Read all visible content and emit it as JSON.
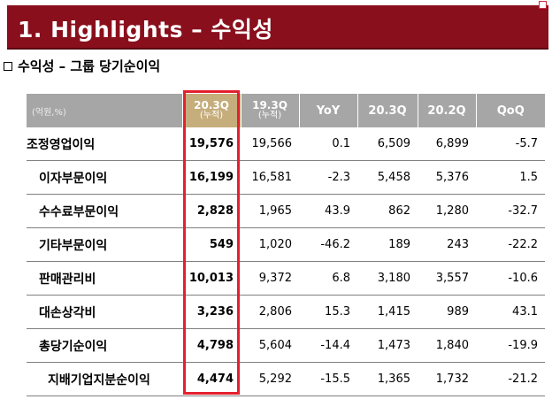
{
  "slide": {
    "title": "1. Highlights – 수익성",
    "subtitle": "수익성 – 그룹 당기순이익"
  },
  "table": {
    "unit": "(억원,%)",
    "columns": [
      {
        "label": "20.3Q",
        "sub": "(누적)"
      },
      {
        "label": "19.3Q",
        "sub": "(누적)"
      },
      {
        "label": "YoY",
        "sub": ""
      },
      {
        "label": "20.3Q",
        "sub": ""
      },
      {
        "label": "20.2Q",
        "sub": ""
      },
      {
        "label": "QoQ",
        "sub": ""
      }
    ],
    "rows": [
      {
        "label": "조정영업이익",
        "values": [
          "19,576",
          "19,566",
          "0.1",
          "6,509",
          "6,899",
          "-5.7"
        ]
      },
      {
        "label": "이자부문이익",
        "values": [
          "16,199",
          "16,581",
          "-2.3",
          "5,458",
          "5,376",
          "1.5"
        ]
      },
      {
        "label": "수수료부문이익",
        "values": [
          "2,828",
          "1,965",
          "43.9",
          "862",
          "1,280",
          "-32.7"
        ]
      },
      {
        "label": "기타부문이익",
        "values": [
          "549",
          "1,020",
          "-46.2",
          "189",
          "243",
          "-22.2"
        ]
      },
      {
        "label": "판매관리비",
        "values": [
          "10,013",
          "9,372",
          "6.8",
          "3,180",
          "3,557",
          "-10.6"
        ]
      },
      {
        "label": "대손상각비",
        "values": [
          "3,236",
          "2,806",
          "15.3",
          "1,415",
          "989",
          "43.1"
        ]
      },
      {
        "label": "총당기순이익",
        "values": [
          "4,798",
          "5,604",
          "-14.4",
          "1,473",
          "1,840",
          "-19.9"
        ]
      },
      {
        "label": "지배기업지분순이익",
        "values": [
          "4,474",
          "5,292",
          "-15.5",
          "1,365",
          "1,732",
          "-21.2"
        ]
      }
    ]
  },
  "colors": {
    "title_bar": "#8a0f1d",
    "header_gray": "#a6a6a6",
    "header_highlight": "#c6ad7c",
    "highlight_border": "#e4202e"
  }
}
